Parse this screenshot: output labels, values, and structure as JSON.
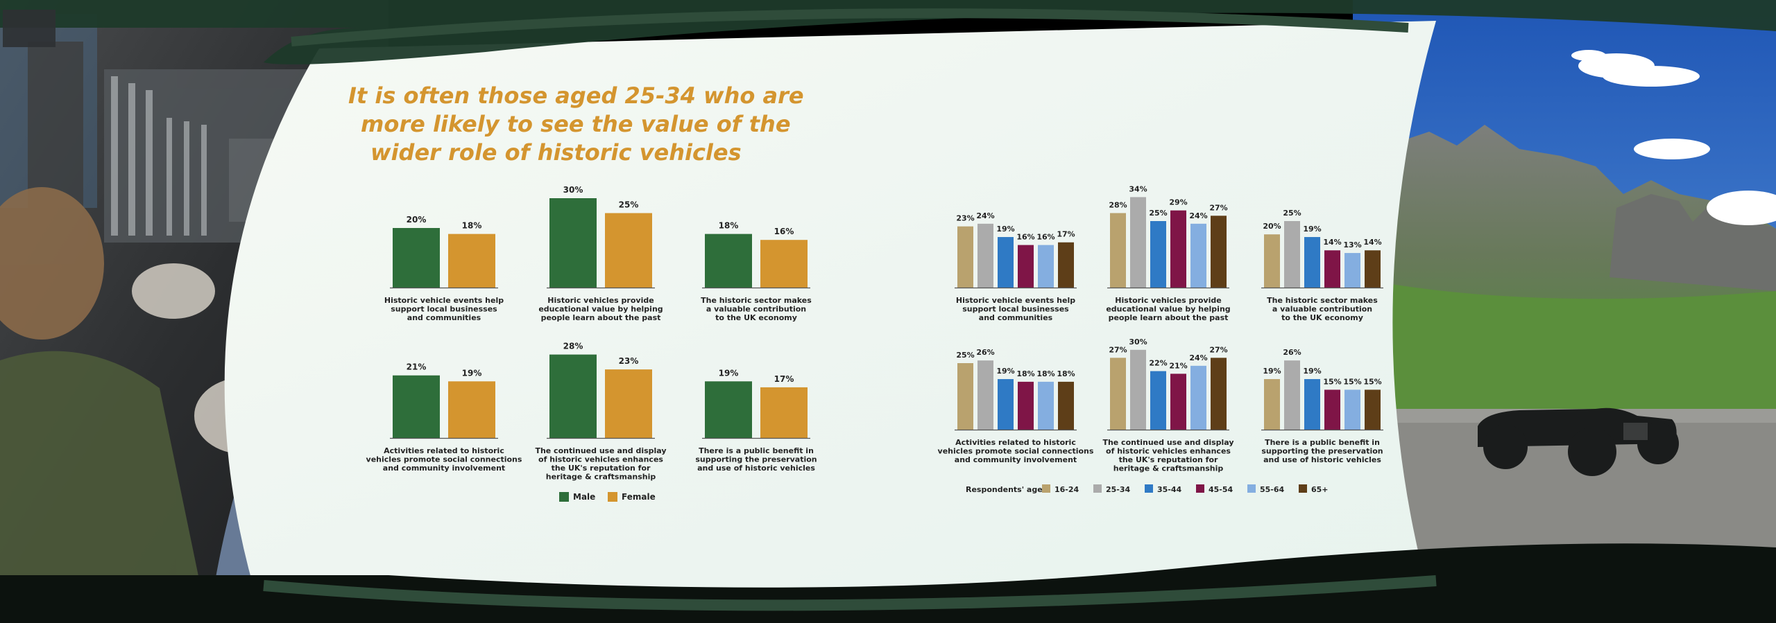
{
  "headline": {
    "line1": "It is often those aged 25-34 who are",
    "line2": "more likely to see the value of the",
    "line3": "wider role of historic vehicles"
  },
  "colors": {
    "male": "#2e6e3a",
    "female": "#d4952f",
    "age_16_24": "#b9a26e",
    "age_25_34": "#ababab",
    "age_35_44": "#2f7ac5",
    "age_45_54": "#7f1547",
    "age_55_64": "#84aee0",
    "age_65_plus": "#5e3e18"
  },
  "chart_data": [
    {
      "type": "bar",
      "group": "gender",
      "title": "",
      "caption": [
        "Historic vehicle events help",
        "support local businesses",
        "and communities"
      ],
      "categories": [
        "Male",
        "Female"
      ],
      "values": [
        20,
        18
      ],
      "ylim": [
        0,
        30
      ]
    },
    {
      "type": "bar",
      "group": "gender",
      "title": "",
      "caption": [
        "Historic vehicles provide",
        "educational value by helping",
        "people learn about the past"
      ],
      "categories": [
        "Male",
        "Female"
      ],
      "values": [
        30,
        25
      ],
      "ylim": [
        0,
        30
      ]
    },
    {
      "type": "bar",
      "group": "gender",
      "title": "",
      "caption": [
        "The historic sector makes",
        "a valuable contribution",
        "to the UK economy"
      ],
      "categories": [
        "Male",
        "Female"
      ],
      "values": [
        18,
        16
      ],
      "ylim": [
        0,
        30
      ]
    },
    {
      "type": "bar",
      "group": "gender",
      "title": "",
      "caption": [
        "Activities related to historic",
        "vehicles promote social connections",
        "and community involvement"
      ],
      "categories": [
        "Male",
        "Female"
      ],
      "values": [
        21,
        19
      ],
      "ylim": [
        0,
        30
      ]
    },
    {
      "type": "bar",
      "group": "gender",
      "title": "",
      "caption": [
        "The continued use and display",
        "of historic vehicles enhances",
        "the UK's reputation for",
        "heritage & craftsmanship"
      ],
      "categories": [
        "Male",
        "Female"
      ],
      "values": [
        28,
        23
      ],
      "ylim": [
        0,
        30
      ]
    },
    {
      "type": "bar",
      "group": "gender",
      "title": "",
      "caption": [
        "There is a public benefit in",
        "supporting the preservation",
        "and use of historic vehicles"
      ],
      "categories": [
        "Male",
        "Female"
      ],
      "values": [
        19,
        17
      ],
      "ylim": [
        0,
        30
      ]
    },
    {
      "type": "bar",
      "group": "age",
      "title": "",
      "caption": [
        "Historic vehicle events help",
        "support local businesses",
        "and communities"
      ],
      "categories": [
        "16-24",
        "25-34",
        "35-44",
        "45-54",
        "55-64",
        "65+"
      ],
      "values": [
        23,
        24,
        19,
        16,
        16,
        17
      ],
      "ylim": [
        0,
        34
      ]
    },
    {
      "type": "bar",
      "group": "age",
      "title": "",
      "caption": [
        "Historic vehicles provide",
        "educational value by helping",
        "people learn about the past"
      ],
      "categories": [
        "16-24",
        "25-34",
        "35-44",
        "45-54",
        "55-64",
        "65+"
      ],
      "values": [
        28,
        34,
        25,
        29,
        24,
        27
      ],
      "ylim": [
        0,
        34
      ]
    },
    {
      "type": "bar",
      "group": "age",
      "title": "",
      "caption": [
        "The historic sector makes",
        "a valuable contribution",
        "to the UK economy"
      ],
      "categories": [
        "16-24",
        "25-34",
        "35-44",
        "45-54",
        "55-64",
        "65+"
      ],
      "values": [
        20,
        25,
        19,
        14,
        13,
        14
      ],
      "ylim": [
        0,
        34
      ]
    },
    {
      "type": "bar",
      "group": "age",
      "title": "",
      "caption": [
        "Activities related to historic",
        "vehicles promote social connections",
        "and community involvement"
      ],
      "categories": [
        "16-24",
        "25-34",
        "35-44",
        "45-54",
        "55-64",
        "65+"
      ],
      "values": [
        25,
        26,
        19,
        18,
        18,
        18
      ],
      "ylim": [
        0,
        34
      ]
    },
    {
      "type": "bar",
      "group": "age",
      "title": "",
      "caption": [
        "The continued use and display",
        "of historic vehicles enhances",
        "the UK's reputation for",
        "heritage & craftsmanship"
      ],
      "categories": [
        "16-24",
        "25-34",
        "35-44",
        "45-54",
        "55-64",
        "65+"
      ],
      "values": [
        27,
        30,
        22,
        21,
        24,
        27
      ],
      "ylim": [
        0,
        34
      ]
    },
    {
      "type": "bar",
      "group": "age",
      "title": "",
      "caption": [
        "There is a public benefit in",
        "supporting the preservation",
        "and use of historic vehicles"
      ],
      "categories": [
        "16-24",
        "25-34",
        "35-44",
        "45-54",
        "55-64",
        "65+"
      ],
      "values": [
        19,
        26,
        19,
        15,
        15,
        15
      ],
      "ylim": [
        0,
        34
      ]
    }
  ],
  "legend_gender": {
    "entries": [
      {
        "label": "Male",
        "color_key": "male"
      },
      {
        "label": "Female",
        "color_key": "female"
      }
    ]
  },
  "legend_age": {
    "title": "Respondents' age:",
    "entries": [
      {
        "label": "16-24",
        "color_key": "age_16_24"
      },
      {
        "label": "25-34",
        "color_key": "age_25_34"
      },
      {
        "label": "35-44",
        "color_key": "age_35_44"
      },
      {
        "label": "45-54",
        "color_key": "age_45_54"
      },
      {
        "label": "55-64",
        "color_key": "age_55_64"
      },
      {
        "label": "65+",
        "color_key": "age_65_plus"
      }
    ]
  }
}
